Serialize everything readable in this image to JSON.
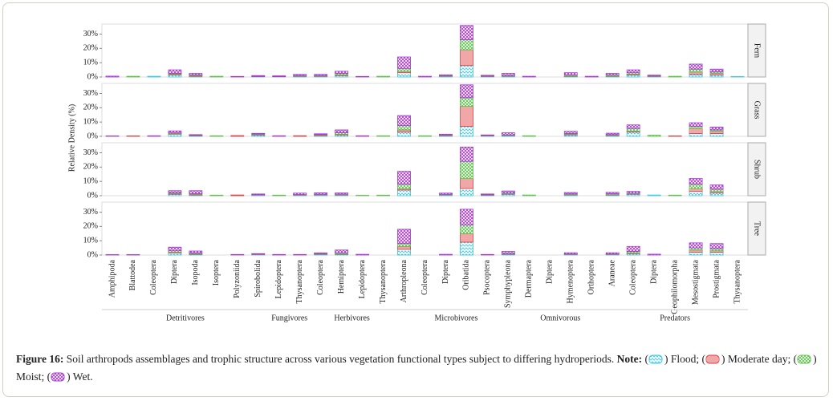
{
  "chart_data": {
    "type": "bar",
    "y_label": "Relative Density (%)",
    "ylim": [
      0,
      37
    ],
    "yticks": [
      {
        "value": 0,
        "label": "0%"
      },
      {
        "value": 10,
        "label": "10%"
      },
      {
        "value": 20,
        "label": "20%"
      },
      {
        "value": 30,
        "label": "30%"
      }
    ],
    "categories": [
      "Amphipoda",
      "Blattodea",
      "Coleoptera",
      "Diptera",
      "Isopoda",
      "Isoptera",
      "Polyzoniida",
      "Spirobolida",
      "Lepidoptera",
      "Thysanoptera",
      "Coleoptera",
      "Hemiptera",
      "Lepidoptera",
      "Thysanoptera",
      "Arthropleona",
      "Coleoptera",
      "Diptera",
      "Oribatida",
      "Psocoptera",
      "Symphypleona",
      "Dermaptera",
      "Diptera",
      "Hymenoptera",
      "Orthoptera",
      "Araneae",
      "Coleoptera",
      "Diptera",
      "Geophilomorpha",
      "Mesostigmata",
      "Prostigmata",
      "Thysanoptera"
    ],
    "category_groups": [
      "Detritivores",
      "Detritivores",
      "Detritivores",
      "Detritivores",
      "Detritivores",
      "Detritivores",
      "Detritivores",
      "Detritivores",
      "Fungivores",
      "Fungivores",
      "Herbivores",
      "Herbivores",
      "Herbivores",
      "Herbivores",
      "Microbivores",
      "Microbivores",
      "Microbivores",
      "Microbivores",
      "Microbivores",
      "Microbivores",
      "Omnivorous",
      "Omnivorous",
      "Omnivorous",
      "Omnivorous",
      "Predators",
      "Predators",
      "Predators",
      "Predators",
      "Predators",
      "Predators",
      "Predators"
    ],
    "series": [
      {
        "name": "Flood",
        "color": "#33c6e6"
      },
      {
        "name": "Moderate day",
        "color": "#e0393e"
      },
      {
        "name": "Moist",
        "color": "#5cbf4a"
      },
      {
        "name": "Wet",
        "color": "#a436d6"
      }
    ],
    "panels": [
      {
        "name": "Fern",
        "values": [
          [
            0,
            0,
            0.5,
            1.5,
            0.5,
            0,
            0,
            0.3,
            0.2,
            0.5,
            0.5,
            1,
            0,
            0,
            3,
            0,
            0.5,
            8,
            0.3,
            0.5,
            0,
            0,
            0.5,
            0,
            0.5,
            1.5,
            0.3,
            0,
            2,
            1.5,
            0.3
          ],
          [
            0,
            0,
            0,
            0.5,
            0.5,
            0,
            0,
            0.2,
            0.2,
            0.3,
            0.3,
            0.5,
            0,
            0,
            1,
            0,
            0.2,
            11,
            0.2,
            0.2,
            0,
            0,
            0.3,
            0,
            0.3,
            0.5,
            0.2,
            0,
            1.5,
            1,
            0
          ],
          [
            0,
            0.5,
            0,
            0.5,
            0.5,
            0.5,
            0,
            0,
            0,
            0.3,
            0.3,
            1,
            0,
            0.5,
            2,
            0,
            0.3,
            7,
            0.2,
            0.3,
            0,
            0,
            0.7,
            0,
            0.7,
            1,
            0.3,
            0.5,
            2,
            1,
            0
          ],
          [
            0.6,
            0,
            0,
            2.5,
            1,
            0,
            0.4,
            0.5,
            0.4,
            0.7,
            0.7,
            1.5,
            0.4,
            0,
            8,
            0.5,
            0.5,
            10,
            0.5,
            1.5,
            0.5,
            0,
            1.5,
            0.5,
            1,
            2,
            0.5,
            0,
            3.5,
            2,
            0
          ]
        ]
      },
      {
        "name": "Grass",
        "values": [
          [
            0,
            0,
            0,
            1.5,
            0.3,
            0,
            0,
            0.8,
            0,
            0,
            0.5,
            1,
            0,
            0,
            3,
            0,
            0.5,
            7,
            0.3,
            0.5,
            0,
            0,
            1,
            0,
            0.5,
            3,
            0,
            0,
            2,
            2,
            0
          ],
          [
            0,
            0.3,
            0,
            0.3,
            0.2,
            0,
            0.5,
            0.3,
            0,
            0.4,
            0.5,
            0.5,
            0,
            0,
            1.5,
            0,
            0.3,
            14,
            0.2,
            0.2,
            0,
            0,
            0.5,
            0,
            0.3,
            0.5,
            0,
            0.3,
            3.5,
            1.5,
            0
          ],
          [
            0,
            0,
            0,
            0.5,
            0.3,
            0.4,
            0,
            0.5,
            0,
            0,
            0.3,
            1,
            0,
            0.4,
            3,
            0.4,
            0.2,
            6,
            0.2,
            0.3,
            0.4,
            0,
            0.5,
            0,
            0.4,
            2,
            0.8,
            0,
            1.5,
            1,
            0
          ],
          [
            0.3,
            0,
            0.4,
            1.5,
            0.4,
            0,
            0,
            0.5,
            0.4,
            0,
            0.5,
            2,
            0.4,
            0,
            7,
            0,
            0.5,
            9,
            0.3,
            1.5,
            0,
            0,
            1.5,
            0,
            1,
            2.5,
            0,
            0,
            2.5,
            2,
            0
          ]
        ]
      },
      {
        "name": "Shrub",
        "values": [
          [
            0,
            0,
            0,
            1,
            0.5,
            0,
            0,
            0.5,
            0,
            0.3,
            0.5,
            0.5,
            0,
            0,
            4,
            0,
            0.5,
            5,
            0.3,
            1,
            0,
            0,
            0.5,
            0,
            0.5,
            1,
            0.5,
            0,
            3,
            2,
            0
          ],
          [
            0,
            0,
            0,
            0.5,
            0.5,
            0,
            0.5,
            0.2,
            0,
            0.2,
            0.2,
            0.3,
            0,
            0,
            1,
            0,
            0.2,
            7,
            0.2,
            0.3,
            0,
            0,
            0.2,
            0,
            0.3,
            0.3,
            0,
            0,
            2,
            1,
            0
          ],
          [
            0,
            0,
            0,
            0.5,
            0.5,
            0.4,
            0,
            0,
            0.4,
            0.3,
            0.3,
            0.3,
            0.3,
            0.4,
            3,
            0,
            0.3,
            12,
            0.2,
            0.5,
            0.5,
            0,
            0.5,
            0,
            0.5,
            0.5,
            0,
            0.4,
            3,
            1.5,
            0
          ],
          [
            0,
            0,
            0,
            1.5,
            2,
            0,
            0,
            0.5,
            0,
            1,
            1,
            0.8,
            0,
            0,
            9,
            0,
            0.8,
            10,
            0.5,
            1.5,
            0,
            0,
            1,
            0,
            1,
            1.2,
            0,
            0,
            4,
            3,
            0
          ]
        ]
      },
      {
        "name": "Tree",
        "values": [
          [
            0,
            0,
            0,
            1.5,
            0.5,
            0,
            0,
            0.3,
            0,
            0,
            0.5,
            0.5,
            0,
            0,
            4,
            0,
            0,
            9,
            0,
            0.5,
            0,
            0,
            0.3,
            0,
            0.3,
            1,
            0,
            0,
            2,
            2,
            0
          ],
          [
            0,
            0,
            0,
            0.5,
            0.3,
            0,
            0,
            0.2,
            0,
            0,
            0.2,
            0.3,
            0,
            0,
            2,
            0,
            0,
            6,
            0,
            0.2,
            0,
            0,
            0.2,
            0,
            0.2,
            0.5,
            0,
            0,
            1.5,
            1,
            0
          ],
          [
            0,
            0,
            0,
            1,
            0.5,
            0,
            0,
            0.2,
            0,
            0,
            0.3,
            0.7,
            0,
            0,
            2,
            0,
            0,
            6,
            0,
            0.3,
            0,
            0,
            0.3,
            0,
            0.3,
            1,
            0,
            0,
            1.5,
            1.5,
            0
          ],
          [
            0.3,
            0.3,
            0,
            2.5,
            1.5,
            0,
            0.4,
            0.3,
            0.4,
            0.4,
            0.5,
            2,
            0.5,
            0,
            10,
            0,
            0.5,
            11,
            0.4,
            1.5,
            0,
            0,
            0.8,
            0,
            0.8,
            3.5,
            0.6,
            0,
            3.5,
            3.5,
            0
          ]
        ]
      }
    ],
    "caption_label": "Figure 16:",
    "caption_text": "Soil arthropods assemblages and trophic structure across various vegetation functional types subject to differing hydroperiods.",
    "note_label": "Note:"
  }
}
